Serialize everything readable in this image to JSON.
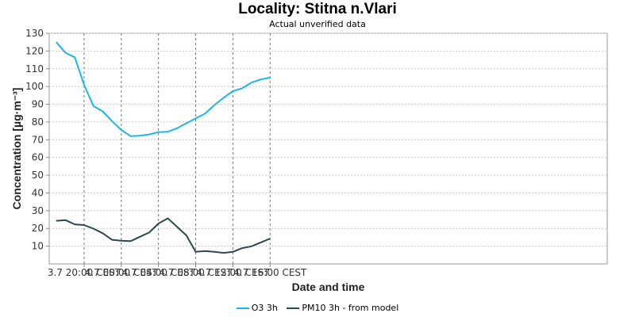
{
  "chart_data": {
    "type": "line",
    "title": "Locality: Stitna n.Vlari",
    "subtitle": "Actual unverified data",
    "xlabel": "Date and time",
    "ylabel": "Concentration [µg·m⁻³]",
    "ylim": [
      0,
      130
    ],
    "y_ticks": [
      10,
      20,
      30,
      40,
      50,
      60,
      70,
      80,
      90,
      100,
      110,
      120,
      130
    ],
    "x_range_hours": [
      16.25,
      76.25
    ],
    "x_ticks": [
      {
        "label": "3.7 20:00 CEST",
        "hour": 20
      },
      {
        "label": "4.7 00:00 CEST",
        "hour": 24
      },
      {
        "label": "4.7 04:00 CEST",
        "hour": 28
      },
      {
        "label": "4.7 08:00 CEST",
        "hour": 32
      },
      {
        "label": "4.7 12:00 CEST",
        "hour": 36
      },
      {
        "label": "4.7 16:00 CEST",
        "hour": 40
      }
    ],
    "grid": true,
    "legend": "bottom-center",
    "series": [
      {
        "name": "O3 3h",
        "color": "#1ab7e8",
        "x_hours": [
          17,
          18,
          19,
          20,
          21,
          22,
          23,
          24,
          25,
          26,
          27,
          28,
          29,
          30,
          31,
          32,
          33,
          34,
          35,
          36,
          37,
          38,
          39,
          40
        ],
        "values": [
          125,
          119,
          116.5,
          101,
          89,
          86,
          80.5,
          75.5,
          72,
          72.3,
          73,
          74.3,
          74.5,
          76.5,
          79.3,
          82,
          84.7,
          89.5,
          93.7,
          97.4,
          99,
          102.2,
          104,
          105
        ]
      },
      {
        "name": "PM10 3h - from model",
        "color": "#2b4a4e",
        "x_hours": [
          17,
          18,
          19,
          20,
          21,
          22,
          23,
          24,
          25,
          26,
          27,
          28,
          29,
          30,
          31,
          32,
          33,
          34,
          35,
          36,
          37,
          38,
          39,
          40
        ],
        "values": [
          24.3,
          24.7,
          22.3,
          21.9,
          19.9,
          17.3,
          13.6,
          13.1,
          12.8,
          15.3,
          17.7,
          22.8,
          25.7,
          20.9,
          16.1,
          6.8,
          7.3,
          6.8,
          6.2,
          6.8,
          8.9,
          9.9,
          12.1,
          14.3
        ]
      }
    ]
  }
}
